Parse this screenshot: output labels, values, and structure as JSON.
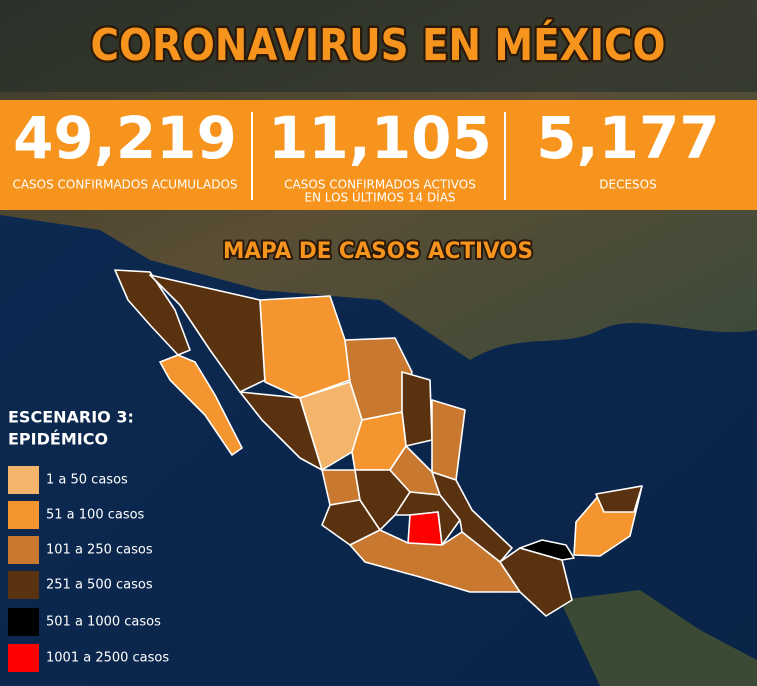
{
  "header": {
    "title": "CORONAVIRUS EN MÉXICO"
  },
  "stats": [
    {
      "value": "49,219",
      "label": [
        "CASOS CONFIRMADOS ACUMULADOS"
      ]
    },
    {
      "value": "11,105",
      "label": [
        "CASOS CONFIRMADOS ACTIVOS",
        "EN LOS ÚLTIMOS 14 DÍAS"
      ]
    },
    {
      "value": "5,177",
      "label": [
        "DECESOS"
      ]
    }
  ],
  "map": {
    "title": "MAPA DE CASOS ACTIVOS"
  },
  "legend": {
    "title": [
      "ESCENARIO 3:",
      "EPIDÉMICO"
    ],
    "items": [
      {
        "label": "1 a 50 casos",
        "color": "#f5b46c"
      },
      {
        "label": "51 a 100 casos",
        "color": "#f49530"
      },
      {
        "label": "101 a 250 casos",
        "color": "#c8782f"
      },
      {
        "label": "251 a 500 casos",
        "color": "#5a3210"
      },
      {
        "label": "501 a 1000 casos",
        "color": "#000000"
      },
      {
        "label": "1001 a 2500 casos",
        "color": "#ff0000"
      }
    ]
  }
}
